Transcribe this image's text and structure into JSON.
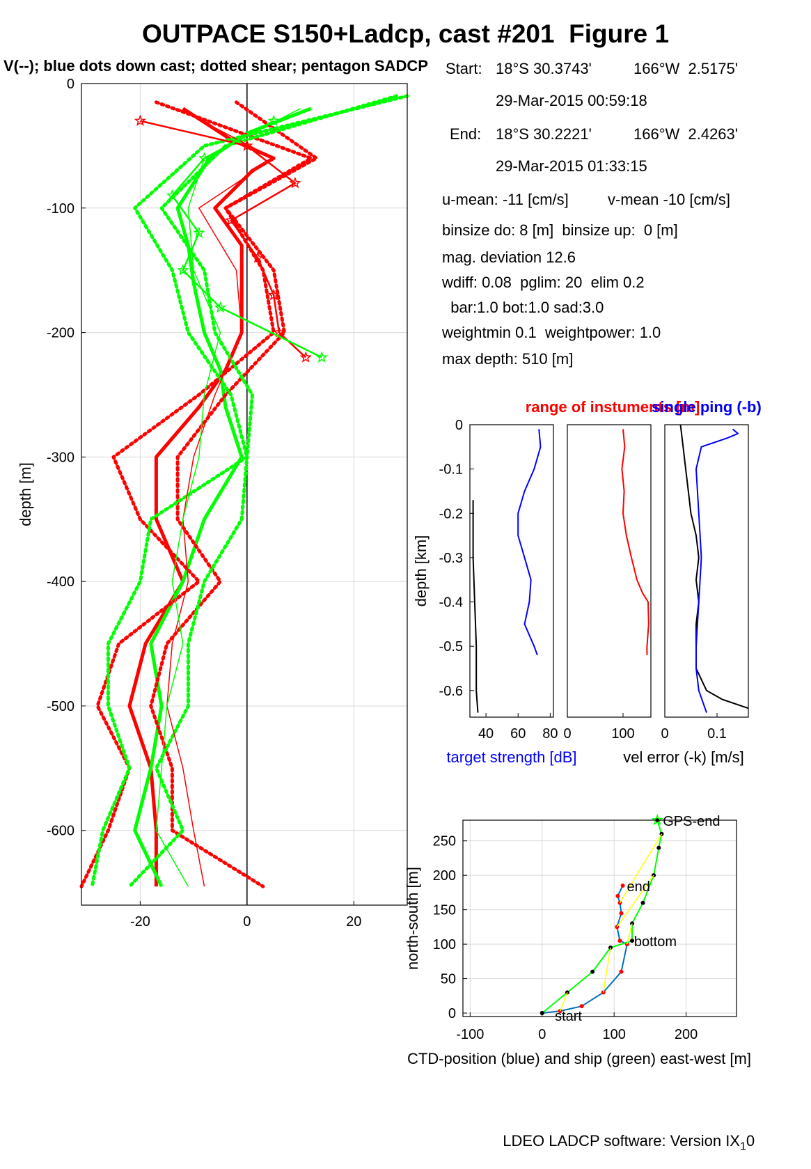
{
  "header": {
    "title": "OUTPACE S150+Ladcp, cast #201  Figure 1",
    "subtitle": "V(--); blue dots down cast; dotted shear; pentagon SADCP"
  },
  "info": {
    "start_label": "Start:",
    "start_lat": "18°S 30.3743'",
    "start_lon": "166°W  2.5175'",
    "start_time": "29-Mar-2015 00:59:18",
    "end_label": "End:",
    "end_lat": "18°S 30.2221'",
    "end_lon": "166°W  2.4263'",
    "end_time": "29-Mar-2015 01:33:15",
    "umean": "u-mean: -11 [cm/s]",
    "vmean": "v-mean -10 [cm/s]",
    "binsize": "binsize do: 8 [m]  binsize up:  0 [m]",
    "magdev": "mag. deviation 12.6",
    "wdiff": "wdiff: 0.08  pglim: 20  elim 0.2",
    "bar": "  bar:1.0 bot:1.0 sad:3.0",
    "weight": "weightmin 0.1  weightpower: 1.0",
    "maxdepth": "max depth: 510 [m]"
  },
  "footer": {
    "software": "LDEO LADCP software: Version IX",
    "sub": "1",
    "tail": "0"
  },
  "colors": {
    "u": "#ff0000",
    "v": "#00ff00",
    "blue": "#0000ff",
    "black": "#000000",
    "yellow": "#ffff00",
    "ctd": "#0072bd",
    "grid": "#d9d9d9"
  },
  "chart_data": [
    {
      "id": "velocity",
      "type": "line",
      "ylabel": "depth [m]",
      "xlim": [
        -31,
        30
      ],
      "ylim": [
        -660,
        0
      ],
      "xticks": [
        -20,
        0,
        20
      ],
      "yticks": [
        0,
        -100,
        -200,
        -300,
        -400,
        -500,
        -600
      ],
      "grid": true,
      "series": [
        {
          "color": "u",
          "style": "thick",
          "depth": [
            -20,
            -45,
            -60,
            -70,
            -100,
            -130,
            -160,
            -200,
            -230,
            -260,
            -300,
            -350,
            -400,
            -450,
            -500,
            -550,
            -600,
            -645
          ],
          "values": [
            -12,
            -3,
            5,
            1,
            -6,
            -1,
            -1,
            -1,
            -4,
            -9,
            -17,
            -17,
            -12,
            -19,
            -22,
            -18,
            -17,
            -17
          ]
        },
        {
          "color": "v",
          "style": "thick",
          "depth": [
            -20,
            -40,
            -60,
            -80,
            -100,
            -130,
            -160,
            -200,
            -230,
            -260,
            -300,
            -350,
            -400,
            -450,
            -500,
            -550,
            -600,
            -645
          ],
          "values": [
            12,
            0,
            -7,
            -10,
            -13,
            -11,
            -10,
            -8,
            -5,
            -4,
            -1,
            -8,
            -12,
            -18,
            -16,
            -18,
            -21,
            -16
          ]
        },
        {
          "color": "u",
          "style": "dotted",
          "depth": [
            -15,
            -60,
            -100,
            -150,
            -200,
            -250,
            -300,
            -350,
            -400,
            -450,
            -500,
            -550,
            -600,
            -645
          ],
          "values": [
            -17,
            12,
            -4,
            3,
            5,
            -9,
            -25,
            -20,
            -9,
            -24,
            -28,
            -22,
            -26,
            -31
          ]
        },
        {
          "color": "u",
          "style": "dotted",
          "depth": [
            -15,
            -60,
            -100,
            -150,
            -200,
            -250,
            -300,
            -350,
            -400,
            -450,
            -500,
            -550,
            -600,
            -645
          ],
          "values": [
            -2,
            13,
            -4,
            5,
            7,
            -4,
            -13,
            -13,
            -5,
            -15,
            -18,
            -14,
            -14,
            3
          ]
        },
        {
          "color": "v",
          "style": "dotted",
          "depth": [
            -10,
            -50,
            -100,
            -150,
            -200,
            -250,
            -300,
            -350,
            -400,
            -450,
            -500,
            -550,
            -600,
            -645
          ],
          "values": [
            30,
            -8,
            -21,
            -14,
            -11,
            -3,
            0,
            -18,
            -20,
            -26,
            -26,
            -22,
            -27,
            -29
          ]
        },
        {
          "color": "v",
          "style": "dotted",
          "depth": [
            -10,
            -50,
            -100,
            -150,
            -200,
            -250,
            -300,
            -350,
            -400,
            -450,
            -500,
            -550,
            -600,
            -645
          ],
          "values": [
            28,
            -4,
            -16,
            -8,
            -6,
            1,
            0,
            -1,
            -8,
            -11,
            -11,
            -17,
            -12,
            -22
          ]
        },
        {
          "color": "u",
          "style": "thin",
          "depth": [
            -20,
            -60,
            -100,
            -150,
            -200,
            -250,
            -300,
            -350,
            -400,
            -450,
            -500,
            -550,
            -600,
            -645
          ],
          "values": [
            -13,
            5,
            -9,
            -2,
            -1,
            -6,
            -10,
            -12,
            -11,
            -14,
            -15,
            -12,
            -10,
            -8
          ]
        },
        {
          "color": "v",
          "style": "thin",
          "depth": [
            -20,
            -60,
            -100,
            -150,
            -200,
            -250,
            -300,
            -350,
            -400,
            -450,
            -500,
            -550,
            -600,
            -645
          ],
          "values": [
            10,
            -8,
            -11,
            -10,
            -5,
            -8,
            -9,
            -12,
            -14,
            -12,
            -15,
            -16,
            -17,
            -11
          ]
        },
        {
          "color": "u",
          "style": "stars",
          "depth": [
            -30,
            -50,
            -80,
            -110,
            -140,
            -170,
            -200,
            -220
          ],
          "values": [
            -20,
            0,
            9,
            -3,
            2,
            5,
            6,
            11
          ]
        },
        {
          "color": "v",
          "style": "stars",
          "depth": [
            -30,
            -60,
            -90,
            -120,
            -150,
            -180,
            -220
          ],
          "values": [
            5,
            -8,
            -14,
            -9,
            -12,
            -5,
            14
          ]
        }
      ]
    },
    {
      "id": "target-strength",
      "type": "line",
      "ylabel": "depth [km]",
      "xlabel": "target strength [dB]",
      "xlim": [
        30,
        82
      ],
      "ylim": [
        -0.66,
        0
      ],
      "xticks": [
        40,
        60,
        80
      ],
      "yticks": [
        0,
        -0.1,
        -0.2,
        -0.3,
        -0.4,
        -0.5,
        -0.6
      ],
      "series": [
        {
          "color": "blue",
          "depth": [
            -0.01,
            -0.05,
            -0.1,
            -0.15,
            -0.2,
            -0.25,
            -0.3,
            -0.35,
            -0.4,
            -0.45,
            -0.5,
            -0.52
          ],
          "values": [
            73,
            74,
            70,
            64,
            60,
            60,
            64,
            68,
            67,
            64,
            70,
            72
          ]
        },
        {
          "color": "black",
          "depth": [
            -0.17,
            -0.3,
            -0.4,
            -0.5,
            -0.6,
            -0.65
          ],
          "values": [
            32,
            32,
            33,
            34,
            34,
            35
          ]
        }
      ]
    },
    {
      "id": "range",
      "type": "line",
      "title": "range of instuments [m]",
      "xlim": [
        0,
        150
      ],
      "ylim": [
        -0.66,
        0
      ],
      "xticks": [
        0,
        100
      ],
      "series": [
        {
          "color": "u",
          "depth": [
            -0.01,
            -0.05,
            -0.1,
            -0.15,
            -0.2,
            -0.25,
            -0.3,
            -0.35,
            -0.38,
            -0.4,
            -0.45,
            -0.5,
            -0.52
          ],
          "values": [
            100,
            103,
            98,
            102,
            100,
            106,
            115,
            125,
            135,
            145,
            146,
            143,
            143
          ]
        }
      ]
    },
    {
      "id": "vel-error",
      "type": "line",
      "title": "single ping (-b)",
      "xlabel": "vel error (-k) [m/s]",
      "xlim": [
        0,
        0.16
      ],
      "ylim": [
        -0.66,
        0
      ],
      "xticks": [
        0,
        0.1
      ],
      "series": [
        {
          "color": "black",
          "depth": [
            0,
            -0.05,
            -0.1,
            -0.15,
            -0.2,
            -0.25,
            -0.3,
            -0.35,
            -0.4,
            -0.45,
            -0.5,
            -0.55,
            -0.6,
            -0.62,
            -0.64
          ],
          "values": [
            0.03,
            0.035,
            0.04,
            0.045,
            0.05,
            0.06,
            0.065,
            0.06,
            0.065,
            0.06,
            0.06,
            0.06,
            0.08,
            0.11,
            0.16
          ]
        },
        {
          "color": "blue",
          "depth": [
            -0.01,
            -0.02,
            -0.03,
            -0.05,
            -0.1,
            -0.2,
            -0.3,
            -0.4,
            -0.5,
            -0.55,
            -0.6,
            -0.65
          ],
          "values": [
            0.13,
            0.14,
            0.12,
            0.07,
            0.06,
            0.065,
            0.07,
            0.065,
            0.06,
            0.06,
            0.065,
            0.08
          ]
        }
      ]
    },
    {
      "id": "track",
      "type": "line",
      "xlabel": "CTD-position (blue) and ship (green) east-west [m]",
      "ylabel": "north-south [m]",
      "xlim": [
        -110,
        270
      ],
      "ylim": [
        -5,
        280
      ],
      "xticks": [
        -100,
        0,
        100,
        200
      ],
      "yticks": [
        0,
        50,
        100,
        150,
        200,
        250
      ],
      "grid": true,
      "annotations": [
        {
          "text": "GPS-end",
          "x": 160,
          "y": 280
        },
        {
          "text": "end",
          "x": 110,
          "y": 185
        },
        {
          "text": "bottom",
          "x": 120,
          "y": 105
        },
        {
          "text": "start",
          "x": 10,
          "y": -3
        }
      ],
      "series": [
        {
          "color": "ctd",
          "x": [
            0,
            25,
            55,
            85,
            110,
            118,
            108,
            104,
            110,
            108,
            105,
            112
          ],
          "y": [
            0,
            3,
            10,
            30,
            60,
            100,
            105,
            125,
            145,
            160,
            170,
            185
          ]
        },
        {
          "color": "v",
          "x": [
            0,
            35,
            70,
            95,
            125,
            125,
            140,
            155,
            162,
            166,
            160
          ],
          "y": [
            0,
            30,
            60,
            95,
            105,
            130,
            160,
            200,
            240,
            260,
            280
          ]
        }
      ]
    }
  ]
}
